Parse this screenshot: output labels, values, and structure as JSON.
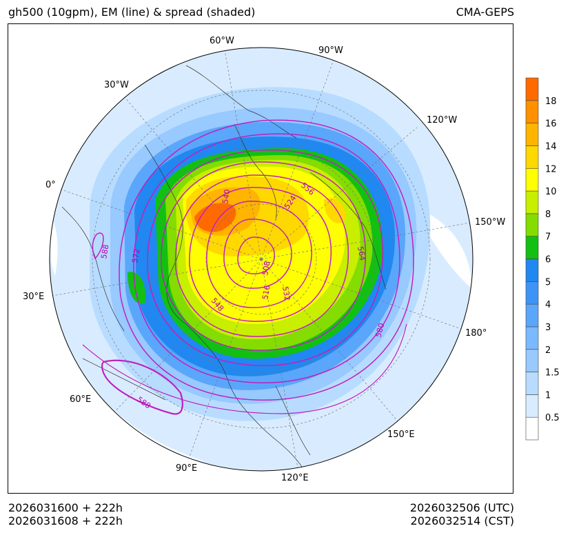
{
  "header": {
    "title_left": "gh500 (10gpm), EM (line) & spread (shaded)",
    "title_right": "CMA-GEPS"
  },
  "footer": {
    "init_utc": "2026031600 + 222h",
    "init_cst": "2026031608 + 222h",
    "valid_utc": "2026032506 (UTC)",
    "valid_cst": "2026032514 (CST)"
  },
  "map": {
    "projection": "north-polar-stereographic",
    "longitude_labels": [
      "60°W",
      "90°W",
      "30°W",
      "120°W",
      "0°",
      "150°W",
      "30°E",
      "180°",
      "60°E",
      "150°E",
      "90°E",
      "120°E"
    ],
    "contour_labels": [
      "540",
      "556",
      "524",
      "572",
      "588",
      "564",
      "508",
      "516",
      "532",
      "548",
      "580",
      "588"
    ],
    "contour_color": "#c020c0"
  },
  "colorbar": {
    "levels": [
      "0.5",
      "1",
      "1.5",
      "2",
      "3",
      "4",
      "5",
      "6",
      "7",
      "8",
      "10",
      "12",
      "14",
      "16",
      "18"
    ],
    "colors": [
      "#ffffff",
      "#d9ecff",
      "#b8dcff",
      "#98c9ff",
      "#7ab8ff",
      "#5aa6fa",
      "#3d94f5",
      "#2088f0",
      "#12c012",
      "#84dc00",
      "#c8ee00",
      "#ffff00",
      "#ffd800",
      "#ffb400",
      "#ff9000",
      "#ff6a00"
    ]
  }
}
